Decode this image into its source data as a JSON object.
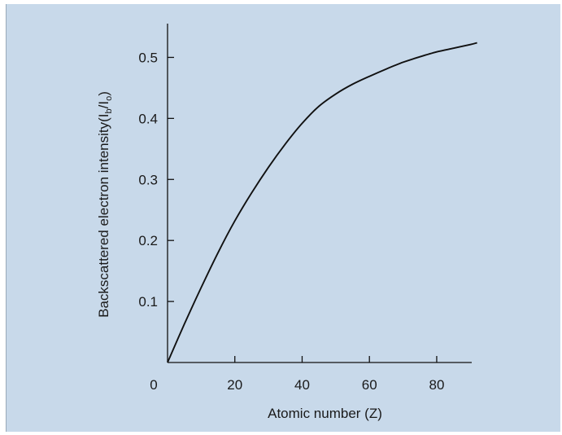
{
  "chart_data": {
    "type": "line",
    "title": "",
    "xlabel": "Atomic number (Z)",
    "ylabel": {
      "main": "Backscattered electron intensity(I",
      "sub1": "b",
      "mid": "/I",
      "sub2": "o",
      "end": ")"
    },
    "xlim": [
      0,
      95
    ],
    "ylim": [
      0,
      0.55
    ],
    "xticks": [
      0,
      20,
      40,
      60,
      80
    ],
    "xtick_labels": [
      "0",
      "20",
      "40",
      "60",
      "80"
    ],
    "yticks": [
      0.1,
      0.2,
      0.3,
      0.4,
      0.5
    ],
    "ytick_labels": [
      "0.1",
      "0.2",
      "0.3",
      "0.4",
      "0.5"
    ],
    "grid": false,
    "legend": "none",
    "series": [
      {
        "color": "#111111",
        "x": [
          0,
          5,
          10,
          15,
          20,
          25,
          30,
          35,
          40,
          45,
          50,
          55,
          60,
          65,
          70,
          75,
          80,
          85,
          90,
          92
        ],
        "y": [
          0,
          0.063,
          0.123,
          0.18,
          0.232,
          0.278,
          0.32,
          0.358,
          0.392,
          0.42,
          0.44,
          0.456,
          0.469,
          0.481,
          0.492,
          0.501,
          0.509,
          0.515,
          0.521,
          0.524
        ]
      }
    ]
  }
}
